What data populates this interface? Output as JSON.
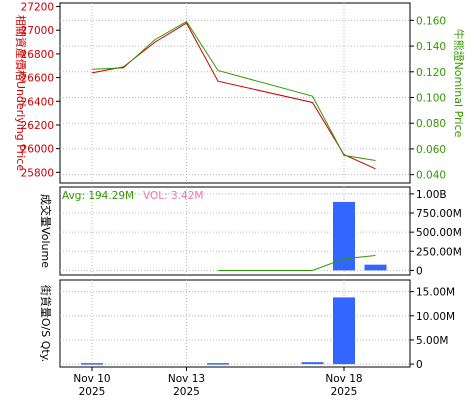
{
  "chart_data": [
    {
      "type": "line",
      "panel": "price",
      "ylabel_left": "相關資產價格Underlying Price",
      "ylabel_right": "牛熊證Nominal Price",
      "x": [
        "2025-11-10",
        "2025-11-11",
        "2025-11-12",
        "2025-11-13",
        "2025-11-14",
        "2025-11-17",
        "2025-11-18",
        "2025-11-19"
      ],
      "x_tick_labels": [
        {
          "x": "2025-11-10",
          "line1": "Nov 10",
          "line2": "2025"
        },
        {
          "x": "2025-11-13",
          "line1": "Nov 13",
          "line2": "2025"
        },
        {
          "x": "2025-11-18",
          "line1": "Nov 18",
          "line2": "2025"
        }
      ],
      "left_axis": {
        "ylim": [
          25710,
          27230
        ],
        "ticks": [
          25800,
          26000,
          26200,
          26400,
          26600,
          26800,
          27000,
          27200
        ],
        "color": "#cc0000"
      },
      "right_axis": {
        "ylim": [
          0.0335,
          0.1735
        ],
        "ticks": [
          "0.040",
          "0.060",
          "0.080",
          "0.100",
          "0.120",
          "0.140",
          "0.160"
        ],
        "color": "#339900"
      },
      "series": [
        {
          "axis": "left",
          "color": "#cc0000",
          "values": [
            26640,
            26690,
            26900,
            27060,
            26570,
            26390,
            25950,
            25830
          ]
        },
        {
          "axis": "right",
          "color": "#339900",
          "values": [
            0.122,
            0.123,
            0.145,
            0.159,
            0.121,
            0.101,
            0.055,
            0.051
          ]
        }
      ],
      "grid": true
    },
    {
      "type": "bar",
      "panel": "volume",
      "ylabel_left": "成交量Volume",
      "avg_label": "Avg: 194.29M",
      "vol_label": "VOL: 3.42M",
      "x": [
        "2025-11-10",
        "2025-11-11",
        "2025-11-12",
        "2025-11-13",
        "2025-11-14",
        "2025-11-17",
        "2025-11-18",
        "2025-11-19"
      ],
      "ylim": [
        -60000000,
        1090000000
      ],
      "ticks": [
        {
          "value": 0,
          "label": "0"
        },
        {
          "value": 250000000,
          "label": "250.00M"
        },
        {
          "value": 500000000,
          "label": "500.00M"
        },
        {
          "value": 750000000,
          "label": "750.00M"
        },
        {
          "value": 1000000000,
          "label": "1.00B"
        }
      ],
      "bar_color": "#3366ff",
      "values": [
        0,
        0,
        0,
        0,
        0,
        0,
        895000000,
        75000000
      ],
      "avg_line": {
        "color": "#339900",
        "values": [
          null,
          null,
          null,
          null,
          -1000000,
          -1000000,
          152000000,
          194290000
        ]
      },
      "grid": true
    },
    {
      "type": "bar",
      "panel": "outstanding",
      "ylabel_left": "街貨量O/S Qty.",
      "x": [
        "2025-11-10",
        "2025-11-11",
        "2025-11-12",
        "2025-11-13",
        "2025-11-14",
        "2025-11-17",
        "2025-11-18",
        "2025-11-19"
      ],
      "ylim": [
        -600000,
        17400000
      ],
      "ticks": [
        {
          "value": 0,
          "label": "0"
        },
        {
          "value": 5000000,
          "label": "5.00M"
        },
        {
          "value": 10000000,
          "label": "10.00M"
        },
        {
          "value": 15000000,
          "label": "15.00M"
        }
      ],
      "bar_color": "#3366ff",
      "values": [
        200000,
        0,
        0,
        0,
        200000,
        400000,
        13800000,
        0
      ],
      "grid": true
    }
  ]
}
